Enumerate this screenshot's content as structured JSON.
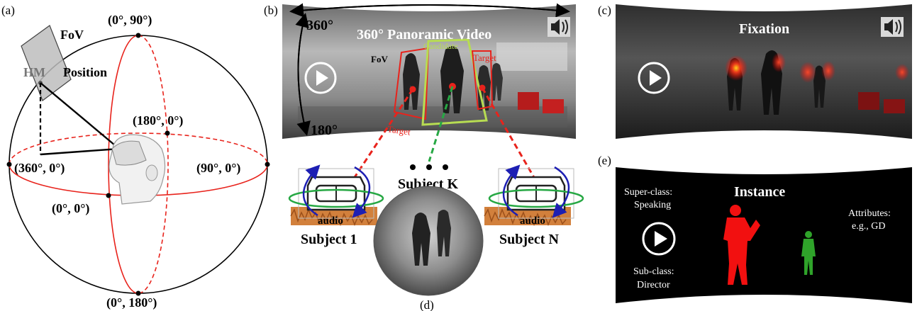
{
  "panel_a": {
    "label": "(a)",
    "fov": "FoV",
    "hm": "HM",
    "position": "Position",
    "coord_top": "(0°, 90°)",
    "coord_back": "(180°, 0°)",
    "coord_left": "(360°, 0°)",
    "coord_right": "(90°, 0°)",
    "coord_front": "(0°, 0°)",
    "coord_bottom": "(0°, 180°)"
  },
  "panel_b": {
    "label": "(b)",
    "deg_360": "360°",
    "deg_180": "180°",
    "title": "360° Panoramic Video",
    "fov": "FoV",
    "candidate": "Candidate",
    "target_right": "Target",
    "target_bottom": "Target",
    "subject_1": "Subject 1",
    "subject_k": "Subject K",
    "subject_n": "Subject N",
    "audio_1": "audio",
    "audio_n": "audio"
  },
  "panel_c": {
    "label": "(c)",
    "title": "Fixation"
  },
  "panel_d": {
    "label": "(d)"
  },
  "panel_e": {
    "label": "(e)",
    "title": "Instance",
    "super_class_1": "Super-class:",
    "super_class_2": "Speaking",
    "sub_class_1": "Sub-class:",
    "sub_class_2": "Director",
    "attributes_1": "Attributes:",
    "attributes_2": "e.g., GD"
  },
  "colors": {
    "red": "#e8231c",
    "green": "#27a844",
    "candidate_green": "#b7dc52",
    "blue": "#1d1fb3",
    "audio_orange": "#d2803c",
    "panel_dark": "#2a2a2a"
  },
  "icons": [
    "play-icon",
    "speaker-icon",
    "vr-headset-icon",
    "person-silhouette-icon"
  ]
}
